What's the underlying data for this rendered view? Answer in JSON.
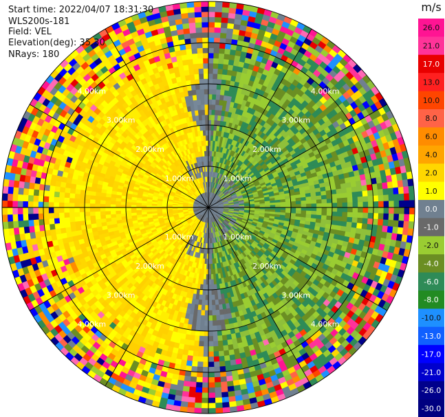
{
  "info": {
    "start_time": "Start time: 2022/04/07 18:31:30",
    "instrument": "WLS200s-181",
    "field": "Field: VEL",
    "elevation": "Elevation(deg): 35.30",
    "nrays": "NRays: 180"
  },
  "colorbar": {
    "unit": "m/s",
    "ticks": [
      "26.0",
      "21.0",
      "17.0",
      "13.0",
      "10.0",
      "8.0",
      "6.0",
      "4.0",
      "2.0",
      "1.0",
      "0.0",
      "-1.0",
      "-2.0",
      "-4.0",
      "-6.0",
      "-8.0",
      "-10.0",
      "-13.0",
      "-17.0",
      "-21.0",
      "-26.0",
      "-30.0"
    ],
    "colors": [
      "#ff1493",
      "#ff3399",
      "#e80000",
      "#ff2020",
      "#ff4500",
      "#ff6347",
      "#ff8c00",
      "#ffa500",
      "#ffd700",
      "#ffff00",
      "#708090",
      "#696969",
      "#9acd32",
      "#6b8e23",
      "#2e8b57",
      "#228b22",
      "#1e90ff",
      "#1060ff",
      "#0000ff",
      "#0000cd",
      "#00008b",
      "#000080"
    ]
  },
  "chart_data": {
    "type": "heatmap",
    "subtype": "radar-ppi",
    "field": "VEL",
    "unit": "m/s",
    "elevation_deg": 35.3,
    "nrays": 180,
    "range_rings_km": [
      1,
      2,
      3,
      4
    ],
    "range_ring_labels": [
      "1.00km",
      "2.00km",
      "3.00km",
      "4.00km"
    ],
    "spokes_deg": [
      0,
      30,
      60,
      90,
      120,
      150,
      180,
      210,
      240,
      270,
      300,
      330
    ],
    "color_levels": [
      -30,
      -26,
      -21,
      -17,
      -13,
      -10,
      -8,
      -6,
      -4,
      -2,
      -1,
      0,
      1,
      2,
      4,
      6,
      8,
      10,
      13,
      17,
      21,
      26
    ],
    "pattern": "dipole: positive velocities (yellow) to the west, negative velocities (green) to the east, near-zero (gray) along the north-south axis and near the center; noisy returns at outer ranges"
  }
}
